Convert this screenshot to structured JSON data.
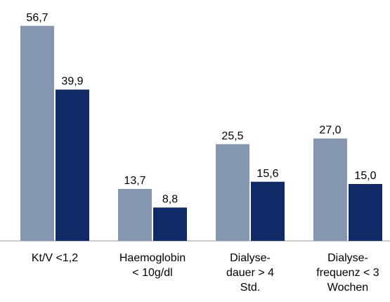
{
  "chart_data": {
    "type": "bar",
    "categories": [
      "Kt/V <1,2",
      "Haemoglobin\n< 10g/dl",
      "Dialyse-\ndauer > 4\nStd.",
      "Dialyse-\nfrequenz < 3\nWochen"
    ],
    "series": [
      {
        "color": "#8596b0",
        "values": [
          56.7,
          13.7,
          25.5,
          27.0
        ],
        "value_labels": [
          "56,7",
          "13,7",
          "25,5",
          "27,0"
        ]
      },
      {
        "color": "#0f2a66",
        "values": [
          39.9,
          8.8,
          15.6,
          15.0
        ],
        "value_labels": [
          "39,9",
          "8,8",
          "15,6",
          "15,0"
        ]
      }
    ],
    "ylim": [
      0,
      60
    ]
  }
}
